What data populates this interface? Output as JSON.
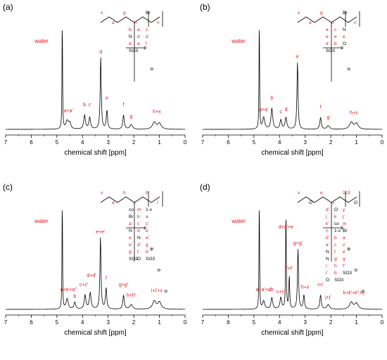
{
  "chart_data": [
    {
      "type": "line",
      "panel_label": "(a)",
      "xlabel": "chemical shift [ppm]",
      "x_ticks": [
        "7",
        "6",
        "5",
        "4",
        "3",
        "2",
        "1",
        "0"
      ],
      "xlim": [
        7,
        0
      ],
      "solvent_label": "water",
      "series": [
        {
          "peaks": [
            {
              "ppm": 4.79,
              "height": 1.0,
              "width": 0.012
            },
            {
              "ppm": 4.6,
              "height": 0.07,
              "width": 0.06
            },
            {
              "ppm": 4.5,
              "height": 0.05,
              "width": 0.05
            },
            {
              "ppm": 3.92,
              "height": 0.12,
              "width": 0.04
            },
            {
              "ppm": 3.72,
              "height": 0.1,
              "width": 0.04
            },
            {
              "ppm": 3.29,
              "height": 0.62,
              "width": 0.025
            },
            {
              "ppm": 3.05,
              "height": 0.16,
              "width": 0.03
            },
            {
              "ppm": 2.4,
              "height": 0.12,
              "width": 0.035
            },
            {
              "ppm": 2.1,
              "height": 0.04,
              "width": 0.06
            },
            {
              "ppm": 1.2,
              "height": 0.06,
              "width": 0.08
            },
            {
              "ppm": 1.0,
              "height": 0.05,
              "width": 0.08
            }
          ]
        }
      ],
      "peak_labels": [
        {
          "text": "a+a'",
          "ppm": 4.55,
          "y": 0.15
        },
        {
          "text": "b",
          "ppm": 3.92,
          "y": 0.2
        },
        {
          "text": "c",
          "ppm": 3.72,
          "y": 0.2
        },
        {
          "text": "d",
          "ppm": 3.29,
          "y": 0.66
        },
        {
          "text": "e",
          "ppm": 3.05,
          "y": 0.26
        },
        {
          "text": "f",
          "ppm": 2.4,
          "y": 0.2
        },
        {
          "text": "g",
          "ppm": 2.1,
          "y": 0.1
        },
        {
          "text": "h+x",
          "ppm": 1.1,
          "y": 0.14
        }
      ],
      "structure": {
        "atoms": [
          "x",
          "a'",
          "g",
          "h",
          "Br",
          "n",
          "b",
          "a",
          "c",
          "N",
          "d",
          "d",
          "d",
          "e",
          "f",
          "SO3"
        ],
        "charges": [
          "⊕",
          "⊖"
        ]
      }
    },
    {
      "type": "line",
      "panel_label": "(b)",
      "xlabel": "chemical shift [ppm]",
      "x_ticks": [
        "7",
        "6",
        "5",
        "4",
        "3",
        "2",
        "1",
        "0"
      ],
      "xlim": [
        7,
        0
      ],
      "solvent_label": "water",
      "series": [
        {
          "peaks": [
            {
              "ppm": 4.79,
              "height": 1.0,
              "width": 0.012
            },
            {
              "ppm": 4.62,
              "height": 0.1,
              "width": 0.05
            },
            {
              "ppm": 4.3,
              "height": 0.18,
              "width": 0.04
            },
            {
              "ppm": 3.95,
              "height": 0.08,
              "width": 0.04
            },
            {
              "ppm": 3.75,
              "height": 0.1,
              "width": 0.04
            },
            {
              "ppm": 3.3,
              "height": 0.58,
              "width": 0.025
            },
            {
              "ppm": 2.4,
              "height": 0.1,
              "width": 0.035
            },
            {
              "ppm": 2.1,
              "height": 0.03,
              "width": 0.06
            },
            {
              "ppm": 1.2,
              "height": 0.06,
              "width": 0.08
            },
            {
              "ppm": 1.0,
              "height": 0.05,
              "width": 0.08
            }
          ]
        }
      ],
      "peak_labels": [
        {
          "text": "a+a'",
          "ppm": 4.62,
          "y": 0.16
        },
        {
          "text": "b",
          "ppm": 4.3,
          "y": 0.26
        },
        {
          "text": "c",
          "ppm": 3.95,
          "y": 0.14
        },
        {
          "text": "d",
          "ppm": 3.75,
          "y": 0.16
        },
        {
          "text": "e",
          "ppm": 3.3,
          "y": 0.62
        },
        {
          "text": "f",
          "ppm": 2.4,
          "y": 0.18
        },
        {
          "text": "g",
          "ppm": 2.1,
          "y": 0.09
        },
        {
          "text": "h+x",
          "ppm": 1.1,
          "y": 0.13
        }
      ],
      "structure": {
        "atoms": [
          "x",
          "a'",
          "g",
          "h",
          "Br",
          "n",
          "a",
          "c",
          "N",
          "e",
          "e",
          "e",
          "d",
          "b",
          "O",
          "SO3"
        ],
        "charges": [
          "⊕",
          "⊖"
        ]
      }
    },
    {
      "type": "line",
      "panel_label": "(c)",
      "xlabel": "chemical shift [ppm]",
      "x_ticks": [
        "7",
        "6",
        "5",
        "4",
        "3",
        "2",
        "1",
        "0"
      ],
      "xlim": [
        7,
        0
      ],
      "solvent_label": "water",
      "series": [
        {
          "peaks": [
            {
              "ppm": 4.79,
              "height": 1.0,
              "width": 0.012
            },
            {
              "ppm": 4.6,
              "height": 0.09,
              "width": 0.05
            },
            {
              "ppm": 4.3,
              "height": 0.06,
              "width": 0.04
            },
            {
              "ppm": 3.9,
              "height": 0.12,
              "width": 0.04
            },
            {
              "ppm": 3.7,
              "height": 0.14,
              "width": 0.04
            },
            {
              "ppm": 3.3,
              "height": 0.62,
              "width": 0.025
            },
            {
              "ppm": 3.08,
              "height": 0.18,
              "width": 0.03
            },
            {
              "ppm": 2.4,
              "height": 0.12,
              "width": 0.035
            },
            {
              "ppm": 2.1,
              "height": 0.04,
              "width": 0.06
            },
            {
              "ppm": 1.2,
              "height": 0.07,
              "width": 0.08
            },
            {
              "ppm": 1.0,
              "height": 0.06,
              "width": 0.08
            }
          ]
        }
      ],
      "peak_labels": [
        {
          "text": "a+a'+a''",
          "ppm": 4.55,
          "y": 0.16
        },
        {
          "text": "b",
          "ppm": 4.3,
          "y": 0.1
        },
        {
          "text": "c+c'",
          "ppm": 3.95,
          "y": 0.2
        },
        {
          "text": "d+d'",
          "ppm": 3.65,
          "y": 0.28
        },
        {
          "text": "e+e'",
          "ppm": 3.3,
          "y": 0.66
        },
        {
          "text": "f",
          "ppm": 3.08,
          "y": 0.26
        },
        {
          "text": "g+g'",
          "ppm": 2.4,
          "y": 0.2
        },
        {
          "text": "h+h'",
          "ppm": 2.1,
          "y": 0.11
        },
        {
          "text": "i+i'+x",
          "ppm": 1.1,
          "y": 0.15
        }
      ],
      "structure": {
        "atoms": [
          "x",
          "a''",
          "h",
          "i",
          "h'",
          "i'",
          "co",
          "m",
          "1-x",
          "Br",
          "b",
          "a",
          "a'",
          "c",
          "c'",
          "N",
          "d",
          "e",
          "e",
          "N",
          "e'",
          "e'",
          "d'",
          "g",
          "g'",
          "f",
          "b'",
          "SO3",
          "O",
          "SO3"
        ],
        "charges": [
          "⊕",
          "⊕",
          "⊖",
          "⊖"
        ]
      }
    },
    {
      "type": "line",
      "panel_label": "(d)",
      "xlabel": "chemical shift [ppm]",
      "x_ticks": [
        "7",
        "6",
        "5",
        "4",
        "3",
        "2",
        "1",
        "0"
      ],
      "xlim": [
        7,
        0
      ],
      "solvent_label": "water",
      "series": [
        {
          "peaks": [
            {
              "ppm": 4.79,
              "height": 1.0,
              "width": 0.012
            },
            {
              "ppm": 4.62,
              "height": 0.07,
              "width": 0.05
            },
            {
              "ppm": 4.3,
              "height": 0.1,
              "width": 0.04
            },
            {
              "ppm": 3.95,
              "height": 0.1,
              "width": 0.04
            },
            {
              "ppm": 3.75,
              "height": 0.85,
              "width": 0.015
            },
            {
              "ppm": 3.62,
              "height": 0.28,
              "width": 0.02
            },
            {
              "ppm": 3.28,
              "height": 0.52,
              "width": 0.025
            },
            {
              "ppm": 3.05,
              "height": 0.12,
              "width": 0.03
            },
            {
              "ppm": 2.4,
              "height": 0.12,
              "width": 0.035
            },
            {
              "ppm": 2.1,
              "height": 0.04,
              "width": 0.06
            },
            {
              "ppm": 1.2,
              "height": 0.06,
              "width": 0.08
            },
            {
              "ppm": 1.0,
              "height": 0.05,
              "width": 0.08
            }
          ]
        }
      ],
      "peak_labels": [
        {
          "text": "a+a'+a''",
          "ppm": 4.6,
          "y": 0.16
        },
        {
          "text": "b",
          "ppm": 4.3,
          "y": 0.16
        },
        {
          "text": "c+c'",
          "ppm": 3.95,
          "y": 0.14
        },
        {
          "text": "d+d'+e",
          "ppm": 3.75,
          "y": 0.7
        },
        {
          "text": "f+f'",
          "ppm": 3.62,
          "y": 0.34
        },
        {
          "text": "g+g'",
          "ppm": 3.28,
          "y": 0.56
        },
        {
          "text": "h+x",
          "ppm": 3.0,
          "y": 0.18
        },
        {
          "text": "i+i'",
          "ppm": 2.4,
          "y": 0.2
        },
        {
          "text": "j+j'",
          "ppm": 2.1,
          "y": 0.09
        },
        {
          "text": "k+k'+k''+y",
          "ppm": 1.1,
          "y": 0.13
        }
      ],
      "structure": {
        "atoms": [
          "x",
          "O",
          "e",
          "d",
          "113",
          "O",
          "d'",
          "O",
          "y",
          "j",
          "k",
          "j'",
          "k'",
          "co",
          "m",
          "n",
          "1-x",
          "Br",
          "b'",
          "b",
          "a",
          "a'",
          "c",
          "c'",
          "N",
          "f",
          "e'",
          "N",
          "g'",
          "g",
          "i",
          "h",
          "f'",
          "i'",
          "b",
          "SO3",
          "O",
          "SO3"
        ],
        "charges": [
          "⊕",
          "⊕",
          "⊖",
          "⊖"
        ]
      }
    }
  ]
}
